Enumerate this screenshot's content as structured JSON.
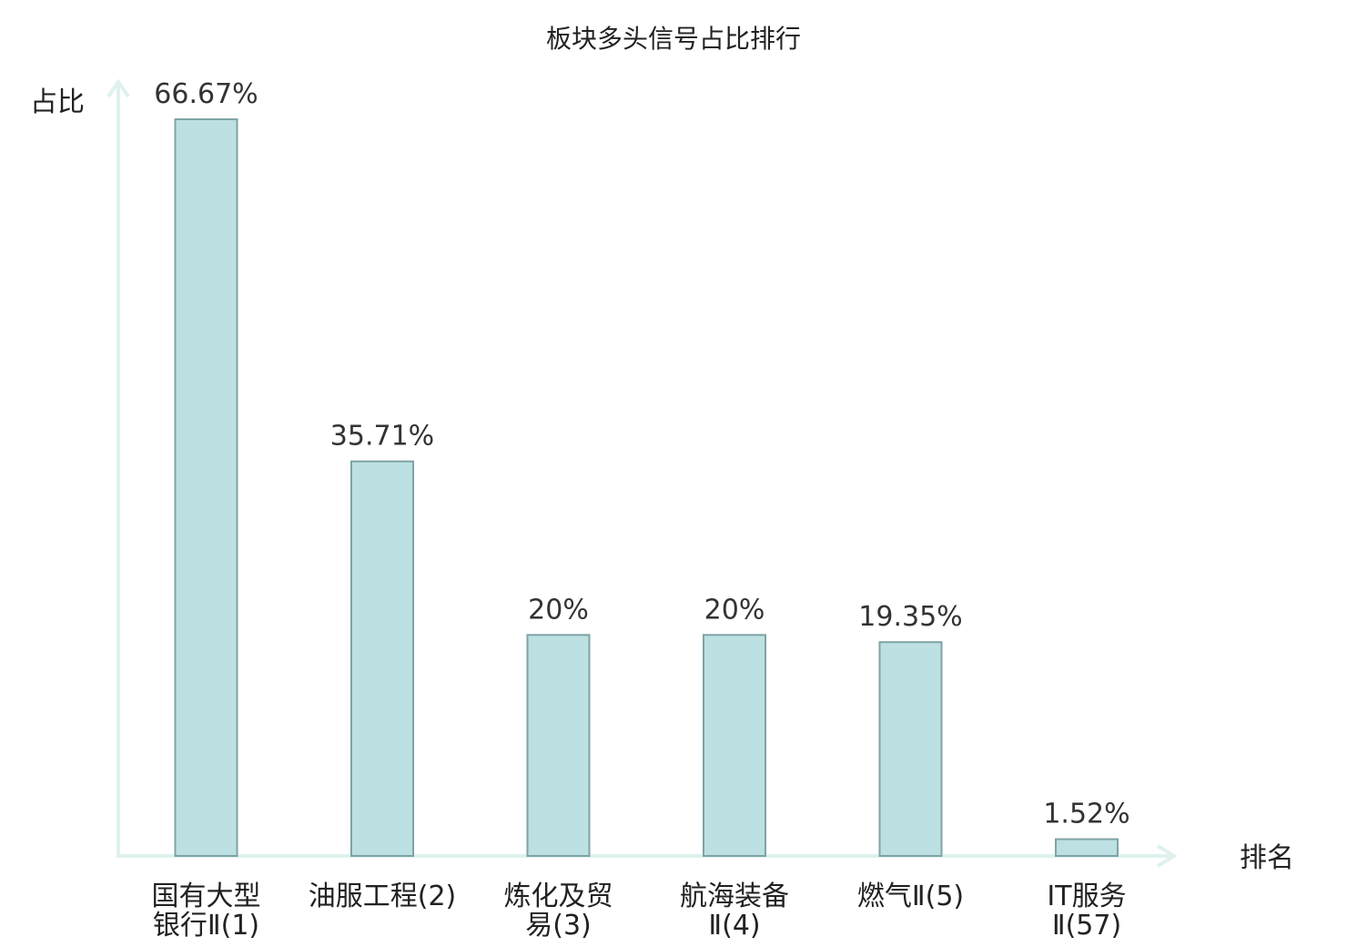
{
  "chart_data": {
    "type": "bar",
    "title": "板块多头信号占比排行",
    "ylabel": "占比",
    "xlabel": "排名",
    "ylim": [
      0,
      70
    ],
    "grid": false,
    "categories": [
      {
        "lines": [
          "国有大型",
          "银行Ⅱ(1)"
        ],
        "highlight": false
      },
      {
        "lines": [
          "油服工程(2)"
        ],
        "highlight": false
      },
      {
        "lines": [
          "炼化及贸",
          "易(3)"
        ],
        "highlight": false
      },
      {
        "lines": [
          "航海装备",
          "Ⅱ(4)"
        ],
        "highlight": false
      },
      {
        "lines": [
          "燃气Ⅱ(5)"
        ],
        "highlight": false
      },
      {
        "lines": [
          "IT服务",
          "Ⅱ(57)"
        ],
        "highlight": true
      }
    ],
    "values": [
      66.67,
      35.71,
      20,
      20,
      19.35,
      1.52
    ],
    "value_labels": [
      "66.67%",
      "35.71%",
      "20%",
      "20%",
      "19.35%",
      "1.52%"
    ],
    "colors": {
      "bar_fill": "#bde0e2",
      "bar_stroke": "#7fa3a5",
      "axis": "#dff1ee",
      "highlight_text": "#e0201e",
      "text": "#222222"
    }
  }
}
